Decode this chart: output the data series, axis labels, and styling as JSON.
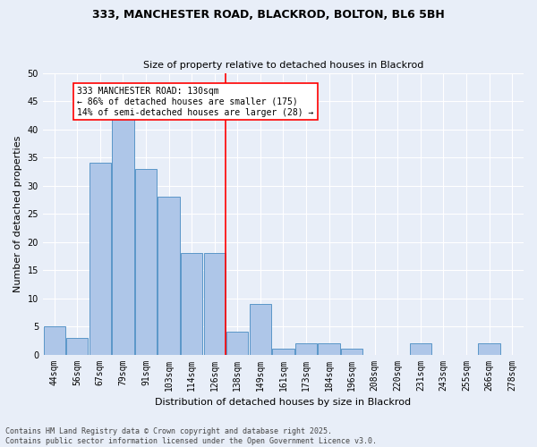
{
  "title1": "333, MANCHESTER ROAD, BLACKROD, BOLTON, BL6 5BH",
  "title2": "Size of property relative to detached houses in Blackrod",
  "xlabel": "Distribution of detached houses by size in Blackrod",
  "ylabel": "Number of detached properties",
  "footer": "Contains HM Land Registry data © Crown copyright and database right 2025.\nContains public sector information licensed under the Open Government Licence v3.0.",
  "bin_labels": [
    "44sqm",
    "56sqm",
    "67sqm",
    "79sqm",
    "91sqm",
    "103sqm",
    "114sqm",
    "126sqm",
    "138sqm",
    "149sqm",
    "161sqm",
    "173sqm",
    "184sqm",
    "196sqm",
    "208sqm",
    "220sqm",
    "231sqm",
    "243sqm",
    "255sqm",
    "266sqm",
    "278sqm"
  ],
  "values": [
    5,
    3,
    34,
    42,
    33,
    28,
    18,
    18,
    4,
    9,
    1,
    2,
    2,
    1,
    0,
    0,
    2,
    0,
    0,
    2,
    0
  ],
  "bar_color": "#aec6e8",
  "bar_edge_color": "#5a96c8",
  "bg_color": "#e8eef8",
  "grid_color": "#ffffff",
  "vline_bar_index": 7,
  "vline_color": "red",
  "annotation_text": "333 MANCHESTER ROAD: 130sqm\n← 86% of detached houses are smaller (175)\n14% of semi-detached houses are larger (28) →",
  "ylim": [
    0,
    50
  ],
  "yticks": [
    0,
    5,
    10,
    15,
    20,
    25,
    30,
    35,
    40,
    45,
    50
  ],
  "fig_bg_color": "#e8eef8",
  "title1_fontsize": 9,
  "title2_fontsize": 8,
  "ylabel_fontsize": 8,
  "xlabel_fontsize": 8,
  "tick_fontsize": 7,
  "footer_fontsize": 6,
  "annot_fontsize": 7
}
